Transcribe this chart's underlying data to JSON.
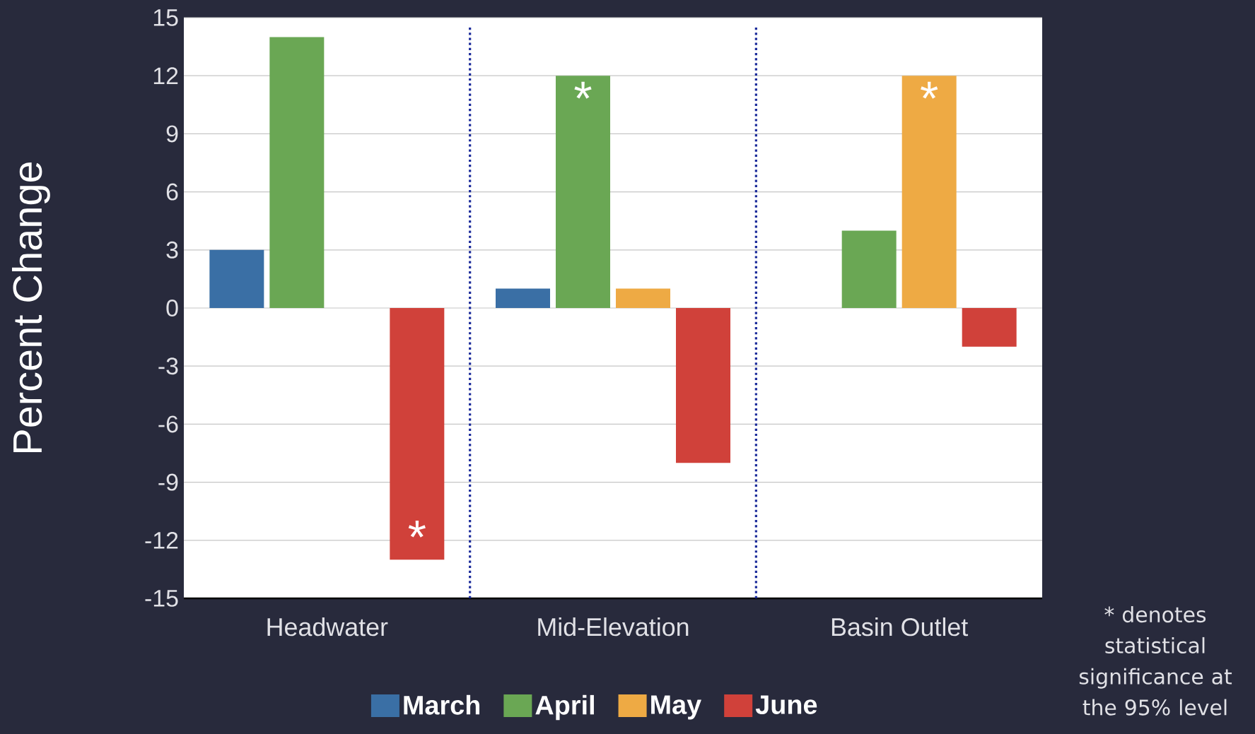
{
  "chart_data": {
    "type": "bar",
    "ylabel": "Percent Change",
    "categories": [
      "Headwater",
      "Mid-Elevation",
      "Basin Outlet"
    ],
    "series": [
      {
        "name": "March",
        "color": "#3a6fa5",
        "values": [
          3,
          1,
          null
        ]
      },
      {
        "name": "April",
        "color": "#6aa754",
        "values": [
          14,
          12,
          4
        ],
        "value_labels": [
          null,
          "*",
          null
        ]
      },
      {
        "name": "May",
        "color": "#eeaa44",
        "values": [
          null,
          1,
          12
        ],
        "value_labels": [
          null,
          null,
          "*"
        ]
      },
      {
        "name": "June",
        "color": "#d0413a",
        "values": [
          -13,
          -8,
          -2
        ],
        "value_labels": [
          "*",
          null,
          null
        ]
      }
    ],
    "ylim": [
      -15,
      15
    ],
    "yticks": [
      -15,
      -12,
      -9,
      -6,
      -3,
      0,
      3,
      6,
      9,
      12,
      15
    ],
    "grid": "y",
    "legend": "bottom",
    "annotations": [
      "* denotes statistical significance at the 95% level"
    ]
  }
}
